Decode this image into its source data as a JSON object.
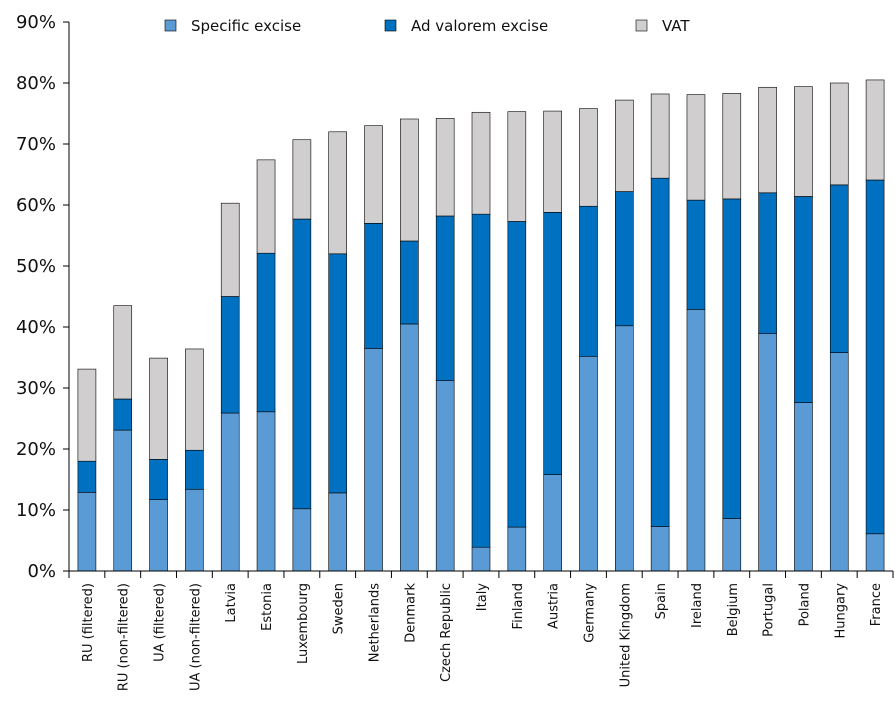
{
  "chart_data": {
    "type": "bar",
    "stacked": true,
    "categories": [
      "RU (filtered)",
      "RU (non-filtered)",
      "UA (filtered)",
      "UA (non-filtered)",
      "Latvia",
      "Estonia",
      "Luxembourg",
      "Sweden",
      "Netherlands",
      "Denmark",
      "Czech Republic",
      "Italy",
      "Finland",
      "Austria",
      "Germany",
      "United Kingdom",
      "Spain",
      "Ireland",
      "Belgium",
      "Portugal",
      "Poland",
      "Hungary",
      "France"
    ],
    "series": [
      {
        "name": "Specific excise",
        "color": "#5b9bd5",
        "values": [
          12.9,
          23.1,
          11.7,
          13.4,
          25.9,
          26.1,
          10.2,
          12.8,
          36.5,
          40.5,
          31.2,
          3.9,
          7.2,
          15.8,
          35.2,
          40.2,
          7.3,
          42.9,
          8.6,
          38.9,
          27.6,
          35.8,
          6.1
        ]
      },
      {
        "name": "Ad valorem excise",
        "color": "#0070c0",
        "values": [
          5.1,
          5.1,
          6.6,
          6.4,
          19.1,
          26.0,
          47.5,
          39.2,
          20.5,
          13.6,
          27.0,
          54.6,
          50.1,
          43.0,
          24.6,
          22.0,
          57.1,
          17.9,
          52.4,
          23.1,
          33.8,
          27.5,
          58.0
        ]
      },
      {
        "name": "VAT",
        "color": "#d0cece",
        "values": [
          15.1,
          15.3,
          16.6,
          16.6,
          15.3,
          15.3,
          13.0,
          20.0,
          16.0,
          20.0,
          16.0,
          16.7,
          18.0,
          16.6,
          16.0,
          15.0,
          13.8,
          17.3,
          17.3,
          17.3,
          18.0,
          16.7,
          16.4
        ]
      }
    ],
    "yticks": [
      "0%",
      "10%",
      "20%",
      "30%",
      "40%",
      "50%",
      "60%",
      "70%",
      "80%",
      "90%"
    ],
    "ylim": [
      0,
      90
    ],
    "grid": false,
    "legend_position": "top"
  }
}
